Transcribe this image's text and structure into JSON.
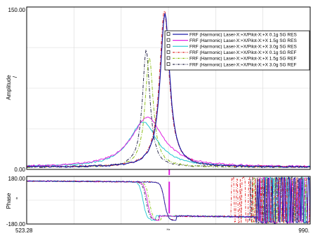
{
  "chart_data": [
    {
      "type": "line",
      "panel": "amplitude",
      "title": "",
      "xlabel": "",
      "ylabel": "Amplitude",
      "ylabel_unit": "/",
      "xlim": [
        523.28,
        990.0
      ],
      "ylim": [
        0,
        150
      ],
      "ytick_labels": [
        "150.00",
        "0.00"
      ],
      "grid": true,
      "legend_position": "top-right",
      "series": [
        {
          "name": "FRF (Harmonic) Laser-X:+X/Pilot-X:+X 0.1g SG RES",
          "color": "#1a1aa6",
          "style": "solid",
          "peak_x": 751,
          "peak_y": 144,
          "base": 2.2,
          "width": 9.5
        },
        {
          "name": "FRF (Harmonic) Laser-X:+X/Pilot-X:+X 1.5g SG RES",
          "color": "#e020e0",
          "style": "solid",
          "peak_x": 722,
          "peak_y": 48,
          "base": 2.2,
          "width": 32
        },
        {
          "name": "FRF (Harmonic) Laser-X:+X/Pilot-X:+X 3.0g SG RES",
          "color": "#20c8d0",
          "style": "solid",
          "peak_x": 715,
          "peak_y": 44,
          "base": 2.2,
          "width": 28
        },
        {
          "name": "FRF (Harmonic) Laser-X:+X/Pilot-X:+X 0.1g SG REF",
          "color": "#e02020",
          "style": "dashdot",
          "peak_x": 750,
          "peak_y": 147,
          "base": 2.2,
          "width": 9.5
        },
        {
          "name": "FRF (Harmonic) Laser-X:+X/Pilot-X:+X 1.5g SG REF",
          "color": "#90c020",
          "style": "dashdot",
          "peak_x": 725,
          "peak_y": 104,
          "base": 2.2,
          "width": 8
        },
        {
          "name": "FRF (Harmonic) Laser-X:+X/Pilot-X:+X 3.0g SG REF",
          "color": "#303050",
          "style": "dashdot",
          "peak_x": 720,
          "peak_y": 110,
          "base": 2.2,
          "width": 7.5
        }
      ]
    },
    {
      "type": "line",
      "panel": "phase",
      "title": "",
      "xlabel": "Hz",
      "ylabel": "Phase",
      "ylabel_unit": "°",
      "xlim": [
        523.28,
        990.0
      ],
      "ylim": [
        -180,
        180
      ],
      "ytick_labels": [
        "180.00",
        "-180.00"
      ],
      "xtick_labels": [
        "523.28",
        "990."
      ],
      "grid": true,
      "series": [
        {
          "name": "0.1g SG RES",
          "color": "#1a1aa6",
          "start": 145,
          "end": -145,
          "transition_x": 750,
          "wrap_from_x": 900
        },
        {
          "name": "1.5g SG RES",
          "color": "#e020e0",
          "start": 145,
          "end": -145,
          "transition_x": 722,
          "wrap_from_x": 905
        },
        {
          "name": "3.0g SG RES",
          "color": "#20c8d0",
          "start": 145,
          "end": -145,
          "transition_x": 715,
          "wrap_from_x": 910
        },
        {
          "name": "0.1g SG REF",
          "color": "#e02020",
          "start": 145,
          "end": -145,
          "transition_x": 750,
          "wrap_from_x": 860
        },
        {
          "name": "1.5g SG REF",
          "color": "#90c020",
          "start": 145,
          "end": -145,
          "transition_x": 725,
          "wrap_from_x": 895
        },
        {
          "name": "3.0g SG REF",
          "color": "#303050",
          "start": 145,
          "end": -145,
          "transition_x": 720,
          "wrap_from_x": 890
        }
      ]
    }
  ]
}
